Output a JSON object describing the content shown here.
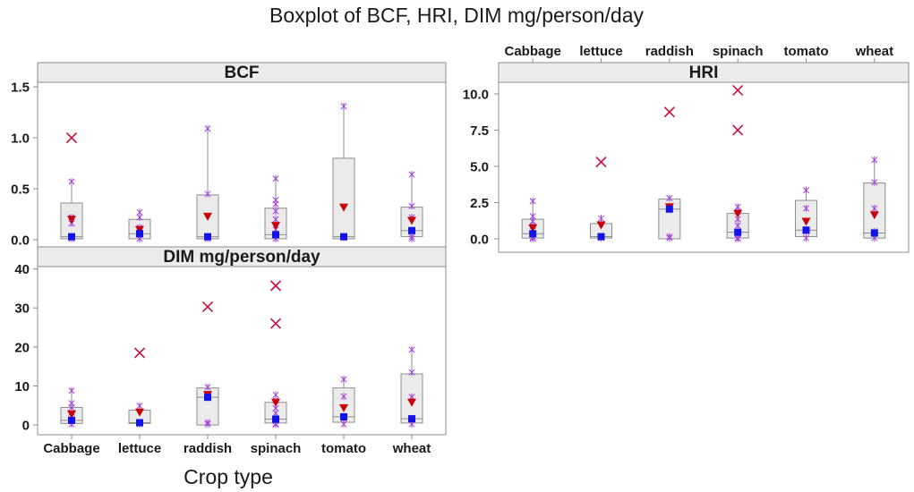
{
  "chart_data": {
    "type": "box",
    "title": "Boxplot of BCF, HRI, DIM mg/person/day",
    "xlabel": "Crop type",
    "grid": false,
    "categories": [
      "Cabbage",
      "lettuce",
      "raddish",
      "spinach",
      "tomato",
      "wheat"
    ],
    "panels": [
      {
        "name": "BCF",
        "ylim": [
          -0.07,
          1.545
        ],
        "yticks": [
          0,
          0.5,
          1.0,
          1.5
        ],
        "ytick_labels": [
          "0.0",
          "0.5",
          "1.0",
          "1.5"
        ],
        "boxes": [
          {
            "q1": 0.01,
            "median": 0.03,
            "q3": 0.36,
            "whisker_low": 0.0,
            "whisker_high": 0.57,
            "mean": 0.2,
            "outliers": [
              1.0
            ],
            "points": [
              0.57,
              0.22,
              0.16,
              0.03,
              0.01
            ]
          },
          {
            "q1": 0.01,
            "median": 0.06,
            "q3": 0.2,
            "whisker_low": 0.0,
            "whisker_high": 0.27,
            "mean": 0.1,
            "outliers": [],
            "points": [
              0.27,
              0.22,
              0.12,
              0.05,
              0.01
            ]
          },
          {
            "q1": 0.01,
            "median": 0.03,
            "q3": 0.44,
            "whisker_low": 0.0,
            "whisker_high": 1.09,
            "mean": 0.23,
            "outliers": [],
            "points": [
              1.09,
              0.45,
              0.03,
              0.01
            ]
          },
          {
            "q1": 0.01,
            "median": 0.05,
            "q3": 0.31,
            "whisker_low": 0.0,
            "whisker_high": 0.6,
            "mean": 0.14,
            "outliers": [],
            "points": [
              0.6,
              0.39,
              0.35,
              0.28,
              0.2,
              0.1,
              0.05,
              0.01
            ]
          },
          {
            "q1": 0.01,
            "median": 0.03,
            "q3": 0.8,
            "whisker_low": 0.0,
            "whisker_high": 1.31,
            "mean": 0.32,
            "outliers": [],
            "points": [
              1.31,
              0.02
            ]
          },
          {
            "q1": 0.03,
            "median": 0.09,
            "q3": 0.32,
            "whisker_low": 0.01,
            "whisker_high": 0.64,
            "mean": 0.19,
            "outliers": [],
            "points": [
              0.64,
              0.33,
              0.22,
              0.09,
              0.03,
              0.01
            ]
          }
        ]
      },
      {
        "name": "HRI",
        "ylim": [
          -0.93,
          10.8
        ],
        "yticks": [
          0,
          2.5,
          5.0,
          7.5,
          10.0
        ],
        "ytick_labels": [
          "0.0",
          "2.5",
          "5.0",
          "7.5",
          "10.0"
        ],
        "boxes": [
          {
            "q1": 0.05,
            "median": 0.35,
            "q3": 1.35,
            "whisker_low": 0.0,
            "whisker_high": 2.6,
            "mean": 0.75,
            "outliers": [],
            "points": [
              2.6,
              1.55,
              1.2,
              0.9,
              0.1,
              0.0
            ]
          },
          {
            "q1": 0.05,
            "median": 0.15,
            "q3": 1.05,
            "whisker_low": 0.0,
            "whisker_high": 1.4,
            "mean": 0.95,
            "outliers": [
              5.3
            ],
            "points": [
              1.4,
              0.15,
              0.05
            ]
          },
          {
            "q1": 0.0,
            "median": 2.05,
            "q3": 2.75,
            "whisker_low": 0.0,
            "whisker_high": 2.8,
            "mean": 2.2,
            "outliers": [
              8.75
            ],
            "points": [
              2.8,
              2.2,
              0.15,
              0.05
            ]
          },
          {
            "q1": 0.05,
            "median": 0.45,
            "q3": 1.75,
            "whisker_low": 0.0,
            "whisker_high": 2.2,
            "mean": 1.75,
            "outliers": [
              10.25,
              7.5
            ],
            "points": [
              2.2,
              1.9,
              1.35,
              0.9,
              0.3,
              0.05,
              0.0
            ]
          },
          {
            "q1": 0.15,
            "median": 0.6,
            "q3": 2.65,
            "whisker_low": 0.05,
            "whisker_high": 3.35,
            "mean": 1.2,
            "outliers": [],
            "points": [
              3.35,
              2.1,
              0.5,
              0.05
            ]
          },
          {
            "q1": 0.05,
            "median": 0.4,
            "q3": 3.85,
            "whisker_low": 0.0,
            "whisker_high": 5.45,
            "mean": 1.65,
            "outliers": [],
            "points": [
              5.45,
              3.9,
              2.1,
              0.5,
              0.05
            ]
          }
        ]
      },
      {
        "name": "DIM mg/person/day",
        "ylim": [
          -2.5,
          40.6
        ],
        "yticks": [
          0,
          10,
          20,
          30,
          40
        ],
        "ytick_labels": [
          "0",
          "10",
          "20",
          "30",
          "40"
        ],
        "boxes": [
          {
            "q1": 0.4,
            "median": 1.2,
            "q3": 4.5,
            "whisker_low": 0.2,
            "whisker_high": 8.8,
            "mean": 2.8,
            "outliers": [],
            "points": [
              8.8,
              5.6,
              4.5,
              3.2,
              1.0,
              0.2
            ]
          },
          {
            "q1": 0.4,
            "median": 0.6,
            "q3": 3.8,
            "whisker_low": 0.2,
            "whisker_high": 4.9,
            "mean": 3.3,
            "outliers": [
              18.5
            ],
            "points": [
              4.9,
              0.6,
              0.2
            ]
          },
          {
            "q1": 0.0,
            "median": 7.1,
            "q3": 9.5,
            "whisker_low": 0.0,
            "whisker_high": 9.7,
            "mean": 7.8,
            "outliers": [
              30.3
            ],
            "points": [
              9.7,
              7.8,
              0.6,
              0.2
            ]
          },
          {
            "q1": 0.5,
            "median": 1.5,
            "q3": 5.8,
            "whisker_low": 0.1,
            "whisker_high": 7.7,
            "mean": 5.8,
            "outliers": [
              35.7,
              26.0
            ],
            "points": [
              7.7,
              6.3,
              4.3,
              3.0,
              1.0,
              0.3,
              0.1
            ]
          },
          {
            "q1": 0.7,
            "median": 2.1,
            "q3": 9.5,
            "whisker_low": 0.2,
            "whisker_high": 11.7,
            "mean": 4.4,
            "outliers": [],
            "points": [
              11.7,
              7.3,
              1.5,
              0.2
            ]
          },
          {
            "q1": 0.5,
            "median": 1.6,
            "q3": 13.1,
            "whisker_low": 0.2,
            "whisker_high": 19.3,
            "mean": 5.8,
            "outliers": [],
            "points": [
              19.3,
              13.5,
              7.2,
              1.6,
              0.2
            ]
          }
        ]
      }
    ]
  },
  "colors": {
    "box_fill": "#ebebeb",
    "box_stroke": "#8e8e8e",
    "frame": "#8e8e8e",
    "strip": "#ececec",
    "plot_bg": "#ffffff",
    "median": "#1414e6",
    "mean": "#c8000a",
    "outlier": "#c8103c",
    "point": "#a244d8"
  }
}
